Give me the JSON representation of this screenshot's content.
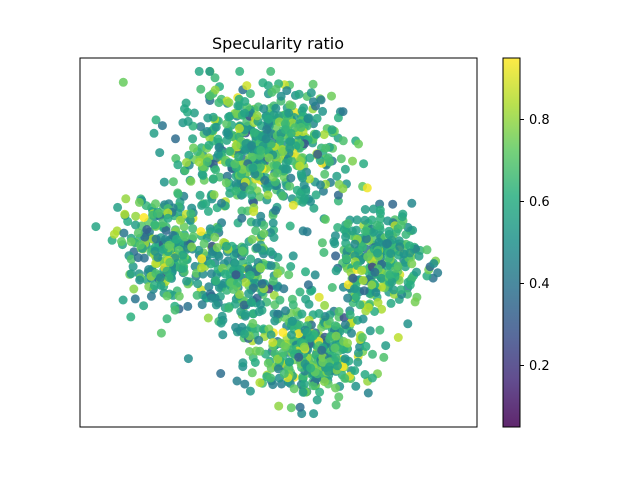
{
  "chart_data": {
    "type": "scatter",
    "title": "Specularity ratio",
    "xlabel": "",
    "ylabel": "",
    "axes_ticks_visible": false,
    "colorbar": {
      "colormap": "viridis",
      "range": [
        0.05,
        0.95
      ],
      "ticks": [
        0.2,
        0.4,
        0.6,
        0.8
      ],
      "tick_labels": [
        "0.2",
        "0.4",
        "0.6",
        "0.8"
      ]
    },
    "clusters": [
      {
        "center": [
          -0.15,
          0.55
        ],
        "spread": [
          0.55,
          0.35
        ],
        "count": 620,
        "mean_value": 0.62
      },
      {
        "center": [
          -0.85,
          -0.05
        ],
        "spread": [
          0.32,
          0.3
        ],
        "count": 260,
        "mean_value": 0.6
      },
      {
        "center": [
          0.75,
          -0.1
        ],
        "spread": [
          0.32,
          0.25
        ],
        "count": 300,
        "mean_value": 0.62
      },
      {
        "center": [
          0.25,
          -0.65
        ],
        "spread": [
          0.4,
          0.25
        ],
        "count": 380,
        "mean_value": 0.63
      },
      {
        "center": [
          -0.25,
          -0.25
        ],
        "spread": [
          0.35,
          0.3
        ],
        "count": 220,
        "mean_value": 0.58
      }
    ],
    "xlim": [
      -1.5,
      1.5
    ],
    "ylim": [
      -1.1,
      1.1
    ],
    "marker_alpha": 0.85
  }
}
